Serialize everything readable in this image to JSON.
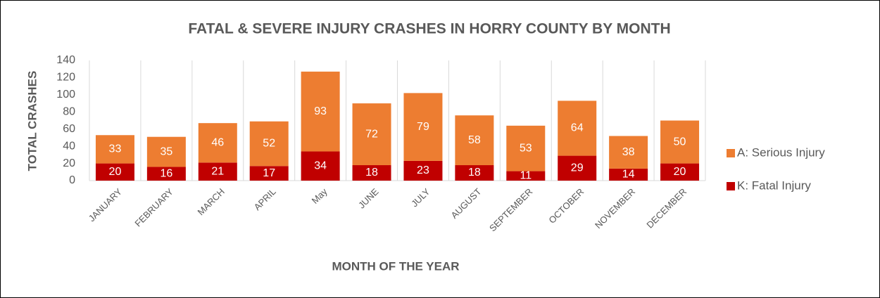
{
  "chart_data": {
    "type": "stacked_bar",
    "title": "FATAL & SEVERE INJURY CRASHES IN HORRY COUNTY BY MONTH",
    "x_label": "MONTH OF THE YEAR",
    "y_label": "TOTAL CRASHES",
    "categories": [
      "JANUARY",
      "FEBRUARY",
      "MARCH",
      "APRIL",
      "May",
      "JUNE",
      "JULY",
      "AUGUST",
      "SEPTEMBER",
      "OCTOBER",
      "NOVEMBER",
      "DECEMBER"
    ],
    "series": [
      {
        "name": "K: Fatal Injury",
        "color": "#c00000",
        "values": [
          20,
          16,
          21,
          17,
          34,
          18,
          23,
          18,
          11,
          29,
          14,
          20
        ]
      },
      {
        "name": "A: Serious Injury",
        "color": "#ed7d31",
        "values": [
          33,
          35,
          46,
          52,
          93,
          72,
          79,
          58,
          53,
          64,
          38,
          50
        ]
      }
    ],
    "ylim": [
      0,
      140
    ],
    "yticks": [
      0,
      20,
      40,
      60,
      80,
      100,
      120,
      140
    ],
    "legend": "right"
  }
}
